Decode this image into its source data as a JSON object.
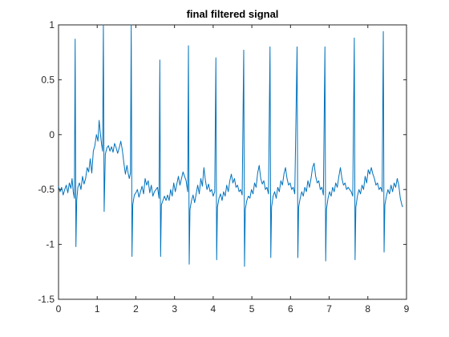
{
  "chart_data": {
    "type": "line",
    "title": "final filtered signal",
    "xlabel": "",
    "ylabel": "",
    "xlim": [
      0,
      9
    ],
    "ylim": [
      -1.5,
      1
    ],
    "xticks": [
      "0",
      "1",
      "2",
      "3",
      "4",
      "5",
      "6",
      "7",
      "8",
      "9"
    ],
    "yticks": [
      "-1.5",
      "-1",
      "-0.5",
      "0",
      "0.5",
      "1"
    ],
    "grid": false,
    "line_color": "#0072BD",
    "series": [
      {
        "values_xy": [
          [
            0.0,
            -0.47
          ],
          [
            0.04,
            -0.52
          ],
          [
            0.08,
            -0.48
          ],
          [
            0.12,
            -0.55
          ],
          [
            0.16,
            -0.5
          ],
          [
            0.2,
            -0.46
          ],
          [
            0.24,
            -0.53
          ],
          [
            0.28,
            -0.44
          ],
          [
            0.32,
            -0.49
          ],
          [
            0.35,
            -0.4
          ],
          [
            0.38,
            -0.52
          ],
          [
            0.41,
            -0.58
          ],
          [
            0.43,
            0.87
          ],
          [
            0.45,
            -1.02
          ],
          [
            0.47,
            -0.6
          ],
          [
            0.5,
            -0.48
          ],
          [
            0.54,
            -0.44
          ],
          [
            0.58,
            -0.5
          ],
          [
            0.62,
            -0.38
          ],
          [
            0.66,
            -0.45
          ],
          [
            0.7,
            -0.4
          ],
          [
            0.74,
            -0.3
          ],
          [
            0.78,
            -0.34
          ],
          [
            0.82,
            -0.22
          ],
          [
            0.86,
            -0.35
          ],
          [
            0.9,
            -0.15
          ],
          [
            0.94,
            -0.1
          ],
          [
            0.98,
            0.0
          ],
          [
            1.02,
            -0.06
          ],
          [
            1.05,
            0.13
          ],
          [
            1.08,
            0.02
          ],
          [
            1.11,
            -0.08
          ],
          [
            1.14,
            -0.15
          ],
          [
            1.16,
            1.0
          ],
          [
            1.18,
            -0.7
          ],
          [
            1.21,
            -0.18
          ],
          [
            1.25,
            -0.12
          ],
          [
            1.29,
            -0.1
          ],
          [
            1.33,
            -0.15
          ],
          [
            1.37,
            -0.11
          ],
          [
            1.41,
            -0.16
          ],
          [
            1.45,
            -0.08
          ],
          [
            1.49,
            -0.12
          ],
          [
            1.53,
            -0.17
          ],
          [
            1.57,
            -0.12
          ],
          [
            1.61,
            -0.06
          ],
          [
            1.65,
            -0.14
          ],
          [
            1.69,
            -0.26
          ],
          [
            1.73,
            -0.36
          ],
          [
            1.77,
            -0.28
          ],
          [
            1.8,
            -0.35
          ],
          [
            1.83,
            -0.4
          ],
          [
            1.86,
            -0.35
          ],
          [
            1.88,
            1.0
          ],
          [
            1.9,
            -1.11
          ],
          [
            1.92,
            -0.64
          ],
          [
            1.96,
            -0.55
          ],
          [
            2.0,
            -0.53
          ],
          [
            2.04,
            -0.5
          ],
          [
            2.08,
            -0.57
          ],
          [
            2.12,
            -0.52
          ],
          [
            2.16,
            -0.47
          ],
          [
            2.2,
            -0.54
          ],
          [
            2.24,
            -0.4
          ],
          [
            2.28,
            -0.46
          ],
          [
            2.32,
            -0.42
          ],
          [
            2.36,
            -0.53
          ],
          [
            2.4,
            -0.46
          ],
          [
            2.44,
            -0.56
          ],
          [
            2.48,
            -0.52
          ],
          [
            2.52,
            -0.5
          ],
          [
            2.56,
            -0.48
          ],
          [
            2.6,
            -0.58
          ],
          [
            2.62,
            0.68
          ],
          [
            2.64,
            -1.11
          ],
          [
            2.66,
            -0.64
          ],
          [
            2.7,
            -0.6
          ],
          [
            2.74,
            -0.56
          ],
          [
            2.78,
            -0.6
          ],
          [
            2.82,
            -0.55
          ],
          [
            2.86,
            -0.6
          ],
          [
            2.9,
            -0.5
          ],
          [
            2.94,
            -0.56
          ],
          [
            2.98,
            -0.44
          ],
          [
            3.02,
            -0.52
          ],
          [
            3.06,
            -0.45
          ],
          [
            3.1,
            -0.38
          ],
          [
            3.14,
            -0.46
          ],
          [
            3.18,
            -0.4
          ],
          [
            3.22,
            -0.34
          ],
          [
            3.26,
            -0.38
          ],
          [
            3.3,
            -0.42
          ],
          [
            3.34,
            -0.52
          ],
          [
            3.36,
            0.81
          ],
          [
            3.38,
            -1.18
          ],
          [
            3.4,
            -0.68
          ],
          [
            3.44,
            -0.6
          ],
          [
            3.48,
            -0.55
          ],
          [
            3.52,
            -0.62
          ],
          [
            3.56,
            -0.54
          ],
          [
            3.6,
            -0.46
          ],
          [
            3.64,
            -0.54
          ],
          [
            3.68,
            -0.4
          ],
          [
            3.72,
            -0.47
          ],
          [
            3.76,
            -0.3
          ],
          [
            3.8,
            -0.42
          ],
          [
            3.84,
            -0.5
          ],
          [
            3.88,
            -0.45
          ],
          [
            3.92,
            -0.52
          ],
          [
            3.96,
            -0.5
          ],
          [
            4.0,
            -0.56
          ],
          [
            4.04,
            -0.52
          ],
          [
            4.07,
            0.7
          ],
          [
            4.09,
            -1.14
          ],
          [
            4.11,
            -0.66
          ],
          [
            4.15,
            -0.58
          ],
          [
            4.19,
            -0.54
          ],
          [
            4.23,
            -0.6
          ],
          [
            4.27,
            -0.52
          ],
          [
            4.31,
            -0.56
          ],
          [
            4.35,
            -0.46
          ],
          [
            4.39,
            -0.52
          ],
          [
            4.43,
            -0.42
          ],
          [
            4.47,
            -0.36
          ],
          [
            4.51,
            -0.44
          ],
          [
            4.55,
            -0.4
          ],
          [
            4.59,
            -0.48
          ],
          [
            4.63,
            -0.46
          ],
          [
            4.67,
            -0.52
          ],
          [
            4.71,
            -0.5
          ],
          [
            4.75,
            -0.55
          ],
          [
            4.79,
            0.77
          ],
          [
            4.81,
            -1.2
          ],
          [
            4.83,
            -0.68
          ],
          [
            4.87,
            -0.6
          ],
          [
            4.91,
            -0.56
          ],
          [
            4.95,
            -0.58
          ],
          [
            4.99,
            -0.5
          ],
          [
            5.03,
            -0.54
          ],
          [
            5.07,
            -0.44
          ],
          [
            5.11,
            -0.48
          ],
          [
            5.15,
            -0.35
          ],
          [
            5.19,
            -0.28
          ],
          [
            5.23,
            -0.4
          ],
          [
            5.27,
            -0.45
          ],
          [
            5.31,
            -0.42
          ],
          [
            5.35,
            -0.5
          ],
          [
            5.39,
            -0.48
          ],
          [
            5.43,
            -0.54
          ],
          [
            5.47,
            0.8
          ],
          [
            5.49,
            -1.12
          ],
          [
            5.51,
            -0.66
          ],
          [
            5.55,
            -0.56
          ],
          [
            5.59,
            -0.52
          ],
          [
            5.63,
            -0.58
          ],
          [
            5.67,
            -0.48
          ],
          [
            5.71,
            -0.52
          ],
          [
            5.75,
            -0.42
          ],
          [
            5.79,
            -0.46
          ],
          [
            5.83,
            -0.36
          ],
          [
            5.87,
            -0.3
          ],
          [
            5.91,
            -0.4
          ],
          [
            5.95,
            -0.46
          ],
          [
            5.99,
            -0.44
          ],
          [
            6.03,
            -0.5
          ],
          [
            6.07,
            -0.48
          ],
          [
            6.11,
            -0.54
          ],
          [
            6.17,
            0.8
          ],
          [
            6.19,
            -1.12
          ],
          [
            6.21,
            -0.66
          ],
          [
            6.25,
            -0.58
          ],
          [
            6.29,
            -0.52
          ],
          [
            6.33,
            -0.56
          ],
          [
            6.37,
            -0.48
          ],
          [
            6.41,
            -0.52
          ],
          [
            6.45,
            -0.42
          ],
          [
            6.49,
            -0.48
          ],
          [
            6.53,
            -0.4
          ],
          [
            6.57,
            -0.3
          ],
          [
            6.61,
            -0.26
          ],
          [
            6.65,
            -0.38
          ],
          [
            6.69,
            -0.44
          ],
          [
            6.73,
            -0.42
          ],
          [
            6.77,
            -0.5
          ],
          [
            6.81,
            -0.48
          ],
          [
            6.85,
            -0.55
          ],
          [
            6.89,
            0.8
          ],
          [
            6.91,
            -1.15
          ],
          [
            6.93,
            -0.68
          ],
          [
            6.97,
            -0.58
          ],
          [
            7.01,
            -0.52
          ],
          [
            7.05,
            -0.56
          ],
          [
            7.09,
            -0.48
          ],
          [
            7.13,
            -0.52
          ],
          [
            7.17,
            -0.44
          ],
          [
            7.21,
            -0.48
          ],
          [
            7.25,
            -0.38
          ],
          [
            7.29,
            -0.3
          ],
          [
            7.33,
            -0.4
          ],
          [
            7.37,
            -0.46
          ],
          [
            7.41,
            -0.44
          ],
          [
            7.45,
            -0.5
          ],
          [
            7.49,
            -0.48
          ],
          [
            7.53,
            -0.5
          ],
          [
            7.57,
            -0.52
          ],
          [
            7.61,
            -0.56
          ],
          [
            7.65,
            0.88
          ],
          [
            7.67,
            -1.14
          ],
          [
            7.69,
            -0.66
          ],
          [
            7.73,
            -0.56
          ],
          [
            7.77,
            -0.5
          ],
          [
            7.81,
            -0.54
          ],
          [
            7.85,
            -0.46
          ],
          [
            7.89,
            -0.5
          ],
          [
            7.93,
            -0.38
          ],
          [
            7.97,
            -0.44
          ],
          [
            8.01,
            -0.32
          ],
          [
            8.05,
            -0.36
          ],
          [
            8.09,
            -0.3
          ],
          [
            8.13,
            -0.36
          ],
          [
            8.17,
            -0.4
          ],
          [
            8.21,
            -0.46
          ],
          [
            8.25,
            -0.44
          ],
          [
            8.29,
            -0.5
          ],
          [
            8.33,
            -0.48
          ],
          [
            8.37,
            -0.52
          ],
          [
            8.4,
            0.94
          ],
          [
            8.42,
            -1.07
          ],
          [
            8.44,
            -0.64
          ],
          [
            8.48,
            -0.56
          ],
          [
            8.52,
            -0.5
          ],
          [
            8.56,
            -0.54
          ],
          [
            8.6,
            -0.46
          ],
          [
            8.64,
            -0.52
          ],
          [
            8.68,
            -0.44
          ],
          [
            8.72,
            -0.48
          ],
          [
            8.76,
            -0.4
          ],
          [
            8.8,
            -0.46
          ],
          [
            8.84,
            -0.58
          ],
          [
            8.88,
            -0.64
          ],
          [
            8.9,
            -0.66
          ]
        ]
      }
    ]
  }
}
